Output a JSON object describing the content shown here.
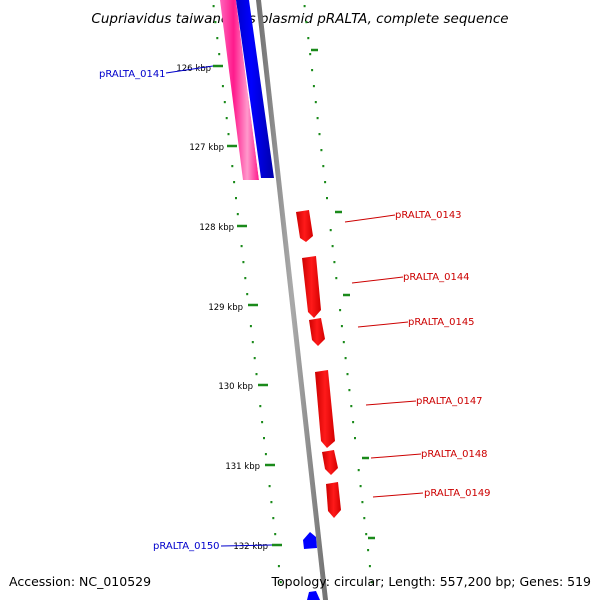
{
  "title": "Cupriavidus taiwanensis plasmid pRALTA, complete sequence",
  "footer": {
    "accession": "Accession: NC_010529",
    "summary": "Topology: circular; Length: 557,200 bp; Genes: 519"
  },
  "colors": {
    "forward_gene": "#ff0000",
    "reverse_gene": "#0000ff",
    "pink_band": "#ff3399",
    "tick_marks": "#1a8a1a",
    "backbone": "#888888"
  },
  "kbp_ticks": [
    "126 kbp",
    "127 kbp",
    "128 kbp",
    "129 kbp",
    "130 kbp",
    "131 kbp",
    "132 kbp"
  ],
  "genes": [
    {
      "id": "pRALTA_0141",
      "strand": "reverse"
    },
    {
      "id": "pRALTA_0143",
      "strand": "forward"
    },
    {
      "id": "pRALTA_0144",
      "strand": "forward"
    },
    {
      "id": "pRALTA_0145",
      "strand": "forward"
    },
    {
      "id": "pRALTA_0147",
      "strand": "forward"
    },
    {
      "id": "pRALTA_0148",
      "strand": "forward"
    },
    {
      "id": "pRALTA_0149",
      "strand": "forward"
    },
    {
      "id": "pRALTA_0150",
      "strand": "reverse"
    }
  ]
}
